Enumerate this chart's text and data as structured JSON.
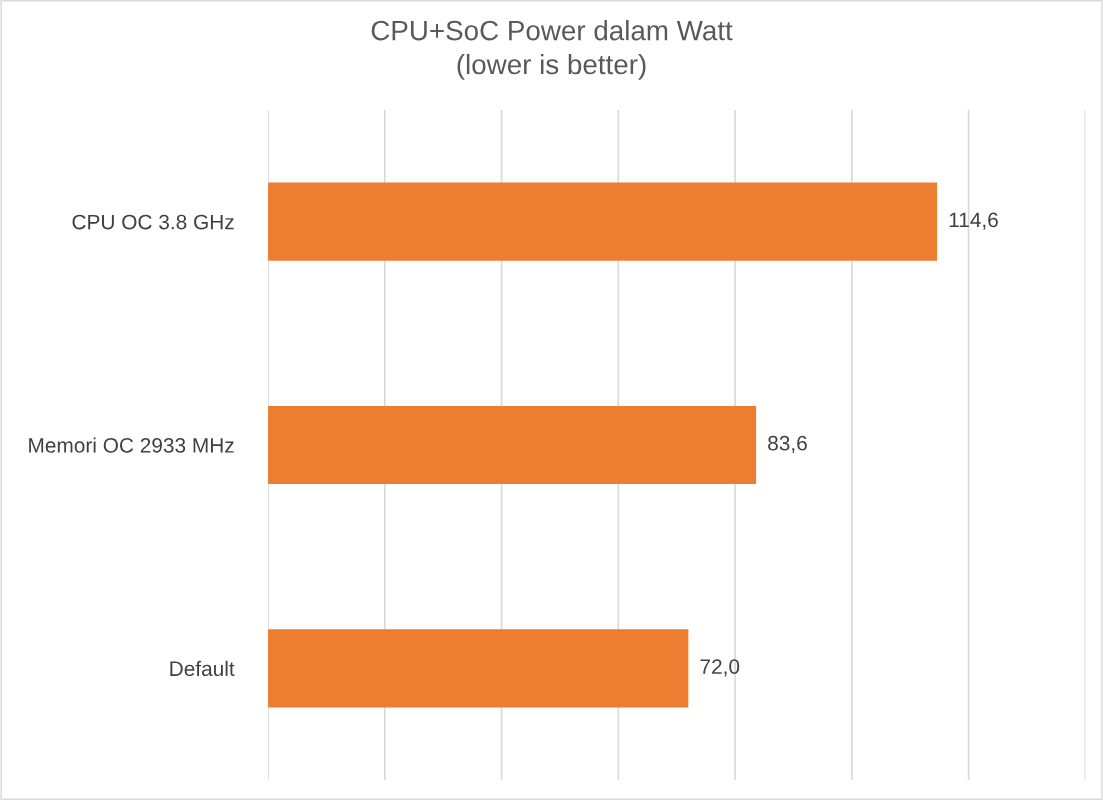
{
  "chart_data": {
    "type": "bar",
    "orientation": "horizontal",
    "title": "CPU+SoC Power dalam Watt\n(lower is better)",
    "categories": [
      "CPU OC 3.8 GHz",
      "Memori OC 2933 MHz",
      "Default"
    ],
    "values": [
      114.6,
      83.6,
      72.0
    ],
    "value_labels": [
      "114,6",
      "83,6",
      "72,0"
    ],
    "color": "#ed7d31",
    "xlim": [
      0,
      140
    ],
    "xticks": [
      {
        "value": 0,
        "label": null
      },
      {
        "value": 20,
        "label": null
      },
      {
        "value": 40,
        "label": null
      },
      {
        "value": 60,
        "label": null
      },
      {
        "value": 80,
        "label": null
      },
      {
        "value": 100,
        "label": null
      },
      {
        "value": 120,
        "label": null
      },
      {
        "value": 140,
        "label": null
      }
    ],
    "grid": "x",
    "tick_labels": "y"
  }
}
